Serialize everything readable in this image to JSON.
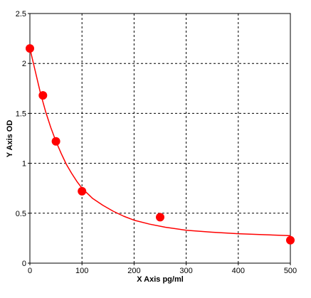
{
  "chart_data": {
    "type": "scatter",
    "xlabel": "X Axis pg/ml",
    "ylabel": "Y Axis OD",
    "xlim": [
      0,
      500
    ],
    "ylim": [
      0,
      2.5
    ],
    "x_ticks": [
      0,
      100,
      200,
      300,
      400,
      500
    ],
    "y_ticks": [
      0,
      0.5,
      1,
      1.5,
      2,
      2.5
    ],
    "x_tick_labels": [
      "0",
      "100",
      "200",
      "300",
      "400",
      "500"
    ],
    "y_tick_labels": [
      "0",
      "0.5",
      "1",
      "1.5",
      "2",
      "2.5"
    ],
    "grid": true,
    "grid_style": "dashed",
    "series": [
      {
        "kind": "points",
        "color": "#ff0000",
        "x": [
          0,
          25,
          50,
          100,
          250,
          500
        ],
        "y": [
          2.15,
          1.68,
          1.22,
          0.72,
          0.46,
          0.23
        ]
      },
      {
        "kind": "fit-curve",
        "color": "#ff0000",
        "x": [
          0,
          10,
          20,
          30,
          40,
          50,
          60,
          70,
          80,
          90,
          100,
          120,
          140,
          160,
          180,
          200,
          230,
          260,
          300,
          350,
          400,
          450,
          500
        ],
        "y": [
          2.15,
          1.93,
          1.71,
          1.52,
          1.36,
          1.22,
          1.1,
          0.99,
          0.9,
          0.82,
          0.75,
          0.65,
          0.58,
          0.52,
          0.47,
          0.43,
          0.39,
          0.36,
          0.33,
          0.31,
          0.295,
          0.285,
          0.275
        ]
      }
    ]
  }
}
